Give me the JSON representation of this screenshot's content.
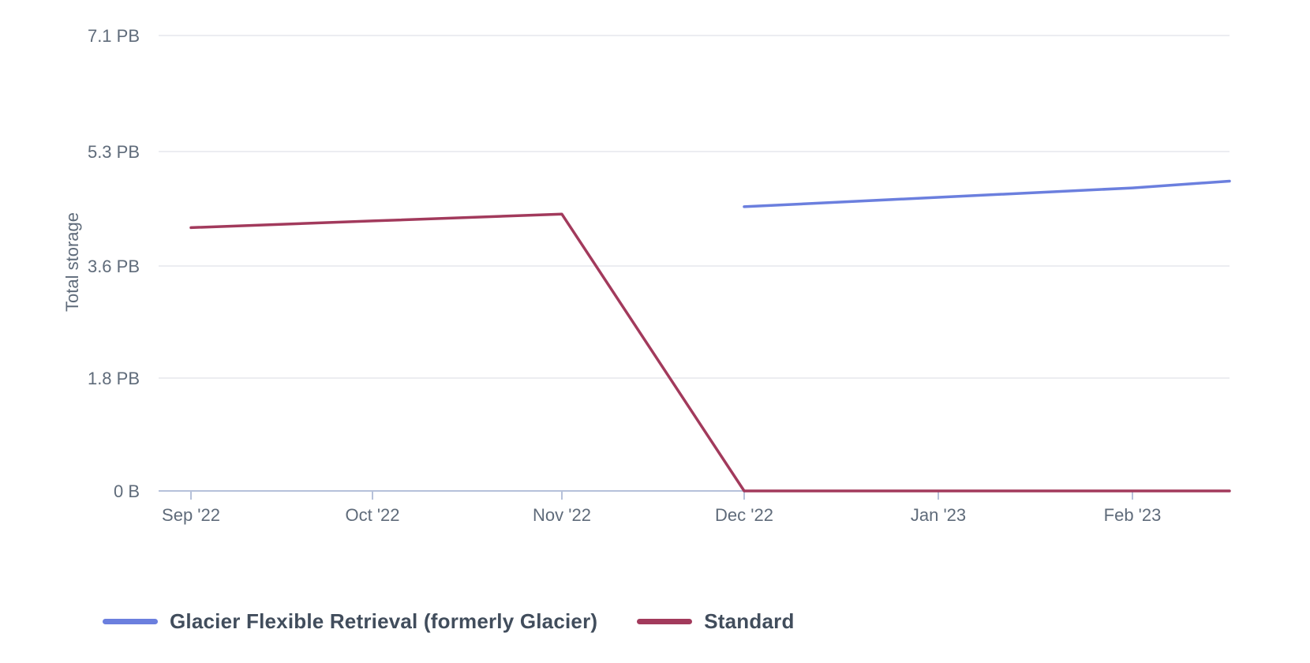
{
  "chart_data": {
    "type": "line",
    "title": "",
    "xlabel": "",
    "ylabel": "Total storage",
    "x_tick_labels": [
      "Sep '22",
      "Oct '22",
      "Nov '22",
      "Dec '22",
      "Jan '23",
      "Feb '23"
    ],
    "y_tick_labels": [
      "7.1 PB",
      "5.3 PB",
      "3.6 PB",
      "1.8 PB",
      "0 B"
    ],
    "y_tick_values_pb": [
      7.1,
      5.3,
      3.6,
      1.8,
      0
    ],
    "ylim_pb": [
      0,
      7.1
    ],
    "grid": "horizontal-only",
    "legend_position": "bottom-left",
    "series": [
      {
        "name": "Glacier Flexible Retrieval (formerly Glacier)",
        "color": "#6b7fde",
        "x_months": [
          "Dec '22",
          "Jan '23",
          "Feb '23",
          "right-edge-mid-Feb"
        ],
        "month_index": [
          3,
          4,
          5,
          5.5
        ],
        "values_pb": [
          4.48,
          4.62,
          4.76,
          4.86
        ]
      },
      {
        "name": "Standard",
        "color": "#a23a5c",
        "x_months": [
          "Sep '22",
          "Oct '22",
          "Nov '22",
          "Dec '22",
          "Jan '23",
          "Feb '23",
          "right-edge-mid-Feb"
        ],
        "month_index": [
          0,
          1,
          2,
          3,
          4,
          5,
          5.5
        ],
        "values_pb": [
          4.17,
          4.27,
          4.37,
          0,
          0,
          0,
          0
        ]
      }
    ],
    "colors": {
      "axis_line": "#b6c1da",
      "gridline": "#ecedf1",
      "tick_text": "#5f6b7a",
      "axis_title_text": "#5f6b7a",
      "legend_text": "#414d5c",
      "background": "#ffffff"
    }
  }
}
